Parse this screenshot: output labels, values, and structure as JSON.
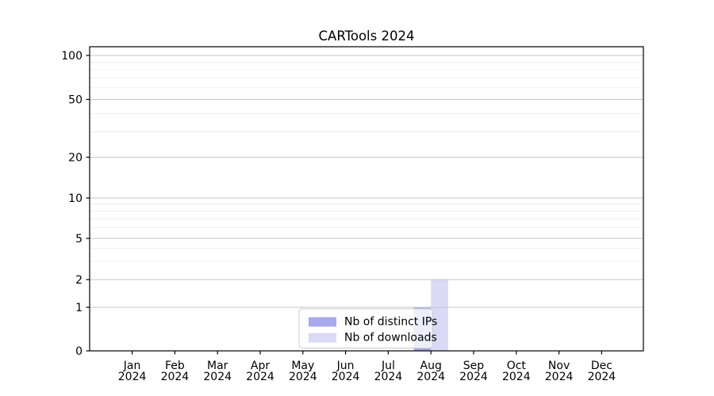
{
  "chart_data": {
    "type": "bar",
    "title": "CARTools 2024",
    "categories": [
      "Jan",
      "Feb",
      "Mar",
      "Apr",
      "May",
      "Jun",
      "Jul",
      "Aug",
      "Sep",
      "Oct",
      "Nov",
      "Dec"
    ],
    "category_year": "2024",
    "series": [
      {
        "name": "Nb of distinct IPs",
        "color": "#a8a8ec",
        "values": [
          0,
          0,
          0,
          0,
          0,
          0,
          0,
          1,
          0,
          0,
          0,
          0
        ]
      },
      {
        "name": "Nb of downloads",
        "color": "#dadaf7",
        "values": [
          0,
          0,
          0,
          0,
          0,
          0,
          0,
          2,
          0,
          0,
          0,
          0
        ]
      }
    ],
    "y_axis": {
      "scale": "log-like",
      "range": [
        0,
        100
      ],
      "major_ticks": [
        0,
        1,
        2,
        5,
        10,
        20,
        50,
        100
      ],
      "minor_ticks": [
        3,
        4,
        6,
        7,
        8,
        9,
        30,
        40,
        60,
        70,
        80,
        90
      ]
    },
    "x_axis": {
      "label_format": "Month over Year"
    },
    "legend": {
      "position": "lower-center",
      "background": "rgba(255,255,255,0.8)",
      "border_color": "#cccccc"
    },
    "grid": {
      "major_color": "#c6c6c6",
      "minor_color": "#ebebeb"
    },
    "frame_color": "#000000"
  }
}
